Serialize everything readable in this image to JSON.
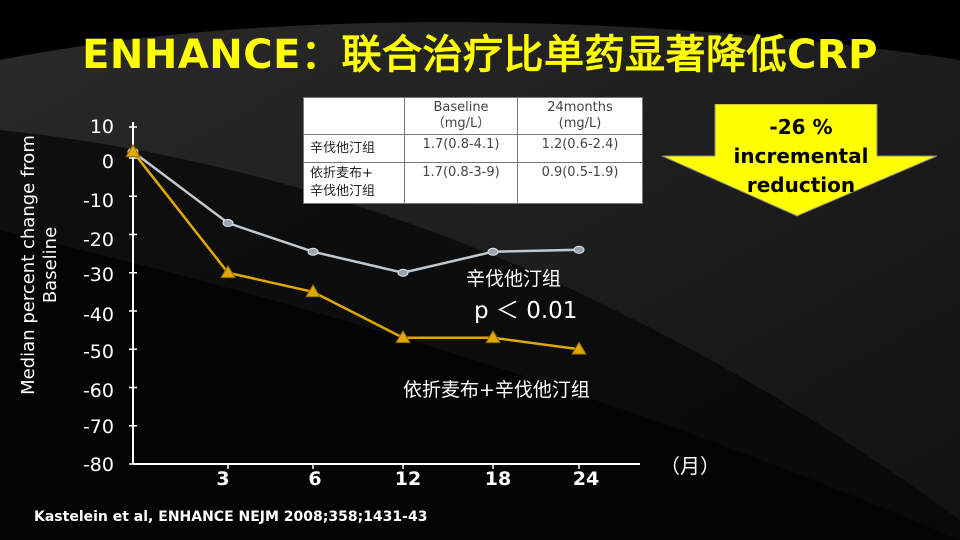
{
  "title": "ENHANCE：联合治疗比单药显著降低CRP",
  "citation": "Kastelein et al, ENHANCE NEJM 2008;358;1431-43",
  "callout": {
    "lines": [
      "-26 %",
      "incremental",
      "reduction"
    ],
    "fill_color": "#ffff00"
  },
  "table": {
    "headers": [
      "",
      "Baseline\n（mg/L）",
      "24months\n(mg/L)"
    ],
    "rows": [
      {
        "name": "辛伐他汀组",
        "baseline": "1.7(0.8-4.1)",
        "m24": "1.2(0.6-2.4)"
      },
      {
        "name": "依折麦布+\n辛伐他汀组",
        "baseline": "1.7(0.8-3-9)",
        "m24": "0.9(0.5-1.9)"
      }
    ]
  },
  "annotations": {
    "simva_label": "辛伐他汀组",
    "pvalue": "p ＜ 0.01",
    "combo_label": "依折麦布+辛伐他汀组"
  },
  "chart_data": {
    "type": "line",
    "ylabel": "Median percent change from Baseline",
    "xunit": "（月）",
    "x": [
      0,
      3,
      6,
      12,
      18,
      24
    ],
    "x_tick_labels": [
      "3",
      "6",
      "12",
      "18",
      "24"
    ],
    "y_ticks": [
      10,
      0,
      -10,
      -20,
      -30,
      -40,
      -50,
      -60,
      -70,
      -80
    ],
    "ylim": [
      -80,
      10
    ],
    "series": [
      {
        "name": "辛伐他汀组",
        "values": [
          2,
          -17,
          -24.5,
          -30,
          -24.5,
          -24
        ],
        "color": "#c0c8d0",
        "marker": "circle"
      },
      {
        "name": "依折麦布+辛伐他汀组",
        "values": [
          2,
          -30,
          -35,
          -47,
          -47,
          -50
        ],
        "color": "#e0a800",
        "marker": "triangle"
      }
    ]
  }
}
